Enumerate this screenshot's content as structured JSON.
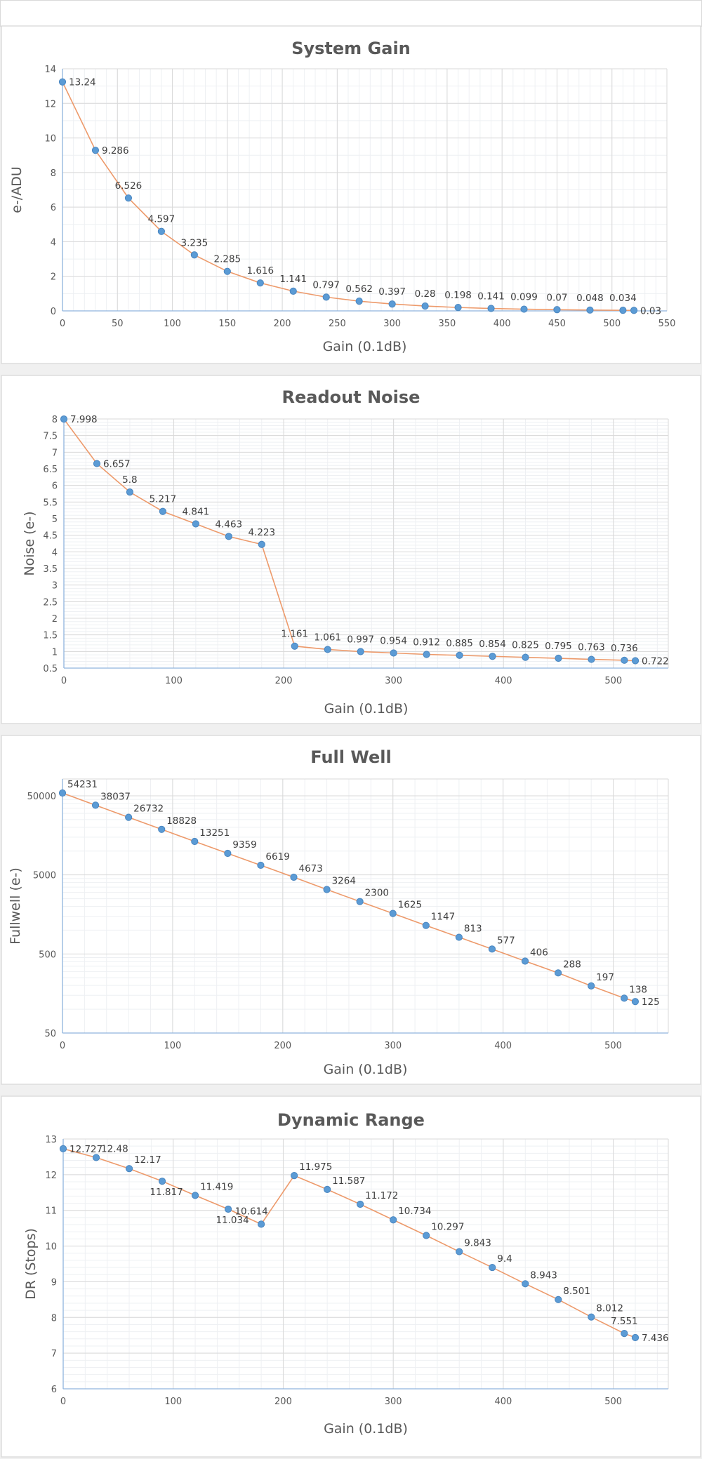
{
  "chart_data": [
    {
      "type": "line",
      "title": "System Gain",
      "xlabel": "Gain (0.1dB)",
      "ylabel": "e-/ADU",
      "xlim": [
        0,
        550
      ],
      "ylim": [
        0,
        14
      ],
      "yscale": "linear",
      "grid": true,
      "xticks": [
        0,
        50,
        100,
        150,
        200,
        250,
        300,
        350,
        400,
        450,
        500,
        550
      ],
      "yticks": [
        0,
        2,
        4,
        6,
        8,
        10,
        12,
        14
      ],
      "x": [
        0,
        30,
        60,
        90,
        120,
        150,
        180,
        210,
        240,
        270,
        300,
        330,
        360,
        390,
        420,
        450,
        480,
        510,
        520
      ],
      "y": [
        13.24,
        9.286,
        6.526,
        4.597,
        3.235,
        2.285,
        1.616,
        1.141,
        0.797,
        0.562,
        0.397,
        0.28,
        0.198,
        0.141,
        0.099,
        0.07,
        0.048,
        0.034,
        0.03
      ],
      "labels": [
        "13.24",
        "9.286",
        "6.526",
        "4.597",
        "3.235",
        "2.285",
        "1.616",
        "1.141",
        "0.797",
        "0.562",
        "0.397",
        "0.28",
        "0.198",
        "0.141",
        "0.099",
        "0.07",
        "0.048",
        "0.034",
        "0.03"
      ]
    },
    {
      "type": "line",
      "title": "Readout Noise",
      "xlabel": "Gain (0.1dB)",
      "ylabel": "Noise (e-)",
      "xlim": [
        0,
        550
      ],
      "ylim": [
        0.5,
        8
      ],
      "yscale": "linear",
      "grid": true,
      "xticks": [
        0,
        100,
        200,
        300,
        400,
        500
      ],
      "yticks": [
        0.5,
        1,
        1.5,
        2,
        2.5,
        3,
        3.5,
        4,
        4.5,
        5,
        5.5,
        6,
        6.5,
        7,
        7.5,
        8
      ],
      "x": [
        0,
        30,
        60,
        90,
        120,
        150,
        180,
        210,
        240,
        270,
        300,
        330,
        360,
        390,
        420,
        450,
        480,
        510,
        520
      ],
      "y": [
        7.998,
        6.657,
        5.8,
        5.217,
        4.841,
        4.463,
        4.223,
        1.161,
        1.061,
        0.997,
        0.954,
        0.912,
        0.885,
        0.854,
        0.825,
        0.795,
        0.763,
        0.736,
        0.722
      ],
      "labels": [
        "7.998",
        "6.657",
        "5.8",
        "5.217",
        "4.841",
        "4.463",
        "4.223",
        "1.161",
        "1.061",
        "0.997",
        "0.954",
        "0.912",
        "0.885",
        "0.854",
        "0.825",
        "0.795",
        "0.763",
        "0.736",
        "0.722"
      ]
    },
    {
      "type": "line",
      "title": "Full Well",
      "xlabel": "Gain (0.1dB)",
      "ylabel": "Fullwell (e-)",
      "xlim": [
        0,
        550
      ],
      "ylim": [
        50,
        50000
      ],
      "yscale": "log",
      "grid": true,
      "xticks": [
        0,
        100,
        200,
        300,
        400,
        500
      ],
      "yticks": [
        50,
        500,
        5000,
        50000
      ],
      "x": [
        0,
        30,
        60,
        90,
        120,
        150,
        180,
        210,
        240,
        270,
        300,
        330,
        360,
        390,
        420,
        450,
        480,
        510,
        520
      ],
      "y": [
        54231,
        38037,
        26732,
        18828,
        13251,
        9359,
        6619,
        4673,
        3264,
        2300,
        1625,
        1147,
        813,
        577,
        406,
        288,
        197,
        138,
        125
      ],
      "labels": [
        "54231",
        "38037",
        "26732",
        "18828",
        "13251",
        "9359",
        "6619",
        "4673",
        "3264",
        "2300",
        "1625",
        "1147",
        "813",
        "577",
        "406",
        "288",
        "197",
        "138",
        "125"
      ]
    },
    {
      "type": "line",
      "title": "Dynamic Range",
      "xlabel": "Gain (0.1dB)",
      "ylabel": "DR (Stops)",
      "xlim": [
        0,
        550
      ],
      "ylim": [
        6,
        13
      ],
      "yscale": "linear",
      "grid": true,
      "xticks": [
        0,
        100,
        200,
        300,
        400,
        500
      ],
      "yticks": [
        6,
        7,
        8,
        9,
        10,
        11,
        12,
        13
      ],
      "x": [
        0,
        30,
        60,
        90,
        120,
        150,
        180,
        210,
        240,
        270,
        300,
        330,
        360,
        390,
        420,
        450,
        480,
        510,
        520
      ],
      "y": [
        12.727,
        12.48,
        12.17,
        11.817,
        11.419,
        11.034,
        10.614,
        11.975,
        11.587,
        11.172,
        10.734,
        10.297,
        9.843,
        9.4,
        8.943,
        8.501,
        8.012,
        7.551,
        7.436
      ],
      "labels": [
        "12.727",
        "12.48",
        "12.17",
        "11.817",
        "11.419",
        "11.034",
        "10.614",
        "11.975",
        "11.587",
        "11.172",
        "10.734",
        "10.297",
        "9.843",
        "9.4",
        "8.943",
        "8.501",
        "8.012",
        "7.551",
        "7.436"
      ]
    }
  ],
  "colors": {
    "marker": "#5b9bd5",
    "line": "#ed9a6b",
    "grid": "#d9d9d9"
  }
}
